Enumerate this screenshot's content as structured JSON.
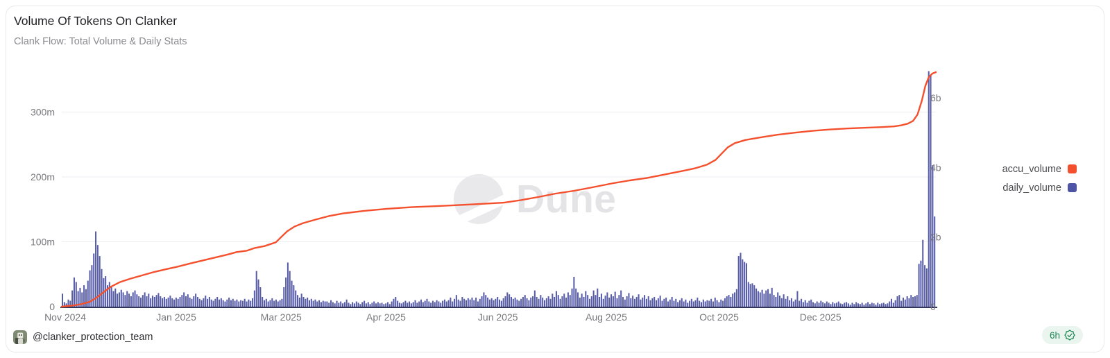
{
  "card": {
    "title": "Volume Of Tokens On Clanker",
    "subtitle": "Clank Flow: Total Volume & Daily Stats"
  },
  "watermark": {
    "text": "Dune"
  },
  "legend": [
    {
      "label": "accu_volume",
      "color": "#F4502D"
    },
    {
      "label": "daily_volume",
      "color": "#4F55A6"
    }
  ],
  "footer": {
    "handle": "@clanker_protection_team",
    "badge": {
      "label": "6h",
      "color": "#1B8651",
      "bg": "#E9F5EE"
    }
  },
  "chart_data": {
    "type": "combo",
    "title": "Volume Of Tokens On Clanker",
    "subtitle": "Clank Flow: Total Volume & Daily Stats",
    "grid": "horizontal-left-axis-only",
    "legend_position": "right",
    "left_axis": {
      "unit": "millions",
      "values": [
        0,
        100,
        200,
        300
      ],
      "labels": [
        "0",
        "100m",
        "200m",
        "300m"
      ],
      "series": "daily_volume"
    },
    "right_axis": {
      "unit": "billions",
      "values": [
        0,
        2,
        4,
        6
      ],
      "labels": [
        "0",
        "2b",
        "4b",
        "6b"
      ],
      "series": "accu_volume"
    },
    "x_axis": {
      "range": "Nov 2024 - Jan 2026 (daily)",
      "ticks": [
        {
          "label": "Nov 2024",
          "f": 0.004
        },
        {
          "label": "Jan 2025",
          "f": 0.131
        },
        {
          "label": "Mar 2025",
          "f": 0.251
        },
        {
          "label": "Apr 2025",
          "f": 0.371
        },
        {
          "label": "Jun 2025",
          "f": 0.499
        },
        {
          "label": "Aug 2025",
          "f": 0.623
        },
        {
          "label": "Oct 2025",
          "f": 0.752
        },
        {
          "label": "Dec 2025",
          "f": 0.868
        }
      ]
    },
    "series": [
      {
        "name": "accu_volume",
        "type": "line",
        "axis": "right",
        "color": "#F4502D",
        "points": [
          [
            0.0,
            0.0
          ],
          [
            0.012,
            0.03
          ],
          [
            0.022,
            0.07
          ],
          [
            0.032,
            0.14
          ],
          [
            0.04,
            0.26
          ],
          [
            0.048,
            0.42
          ],
          [
            0.056,
            0.57
          ],
          [
            0.066,
            0.7
          ],
          [
            0.078,
            0.8
          ],
          [
            0.092,
            0.9
          ],
          [
            0.106,
            1.0
          ],
          [
            0.12,
            1.08
          ],
          [
            0.131,
            1.14
          ],
          [
            0.15,
            1.26
          ],
          [
            0.17,
            1.38
          ],
          [
            0.19,
            1.5
          ],
          [
            0.2,
            1.57
          ],
          [
            0.212,
            1.61
          ],
          [
            0.22,
            1.68
          ],
          [
            0.232,
            1.74
          ],
          [
            0.245,
            1.85
          ],
          [
            0.251,
            2.0
          ],
          [
            0.258,
            2.17
          ],
          [
            0.266,
            2.3
          ],
          [
            0.276,
            2.4
          ],
          [
            0.29,
            2.5
          ],
          [
            0.305,
            2.6
          ],
          [
            0.322,
            2.68
          ],
          [
            0.345,
            2.75
          ],
          [
            0.371,
            2.81
          ],
          [
            0.4,
            2.86
          ],
          [
            0.438,
            2.9
          ],
          [
            0.47,
            2.94
          ],
          [
            0.506,
            2.99
          ],
          [
            0.525,
            3.06
          ],
          [
            0.545,
            3.15
          ],
          [
            0.565,
            3.25
          ],
          [
            0.586,
            3.33
          ],
          [
            0.605,
            3.42
          ],
          [
            0.631,
            3.55
          ],
          [
            0.65,
            3.63
          ],
          [
            0.67,
            3.7
          ],
          [
            0.69,
            3.8
          ],
          [
            0.71,
            3.9
          ],
          [
            0.725,
            3.98
          ],
          [
            0.738,
            4.08
          ],
          [
            0.748,
            4.22
          ],
          [
            0.755,
            4.4
          ],
          [
            0.762,
            4.58
          ],
          [
            0.77,
            4.7
          ],
          [
            0.782,
            4.79
          ],
          [
            0.798,
            4.86
          ],
          [
            0.818,
            4.94
          ],
          [
            0.838,
            5.0
          ],
          [
            0.858,
            5.05
          ],
          [
            0.878,
            5.09
          ],
          [
            0.898,
            5.12
          ],
          [
            0.918,
            5.14
          ],
          [
            0.938,
            5.16
          ],
          [
            0.952,
            5.18
          ],
          [
            0.96,
            5.21
          ],
          [
            0.968,
            5.26
          ],
          [
            0.974,
            5.34
          ],
          [
            0.979,
            5.52
          ],
          [
            0.984,
            5.92
          ],
          [
            0.988,
            6.35
          ],
          [
            0.992,
            6.6
          ],
          [
            0.996,
            6.7
          ],
          [
            1.0,
            6.74
          ]
        ]
      },
      {
        "name": "daily_volume",
        "type": "bar",
        "axis": "left",
        "color": "#575CA7",
        "values": [
          20,
          7,
          5,
          11,
          9,
          25,
          45,
          38,
          24,
          29,
          22,
          33,
          27,
          40,
          56,
          64,
          82,
          116,
          95,
          78,
          58,
          44,
          47,
          33,
          38,
          30,
          24,
          28,
          20,
          22,
          26,
          22,
          18,
          24,
          20,
          16,
          22,
          25,
          19,
          16,
          14,
          18,
          22,
          16,
          20,
          13,
          17,
          15,
          18,
          21,
          16,
          13,
          15,
          12,
          14,
          17,
          13,
          11,
          14,
          12,
          15,
          18,
          22,
          16,
          19,
          14,
          12,
          16,
          20,
          15,
          12,
          10,
          13,
          17,
          12,
          15,
          11,
          9,
          12,
          15,
          11,
          13,
          10,
          8,
          11,
          14,
          10,
          12,
          9,
          11,
          8,
          10,
          9,
          12,
          8,
          11,
          9,
          13,
          25,
          55,
          42,
          30,
          15,
          10,
          12,
          8,
          10,
          13,
          9,
          11,
          8,
          10,
          12,
          30,
          45,
          68,
          55,
          40,
          33,
          25,
          18,
          14,
          20,
          15,
          12,
          14,
          10,
          12,
          9,
          11,
          8,
          10,
          7,
          9,
          8,
          8,
          6,
          10,
          7,
          5,
          9,
          6,
          8,
          5,
          7,
          11,
          6,
          4,
          7,
          5,
          8,
          6,
          4,
          7,
          9,
          5,
          7,
          4,
          6,
          8,
          5,
          7,
          5,
          6,
          4,
          5,
          7,
          4,
          8,
          12,
          15,
          9,
          6,
          5,
          7,
          9,
          6,
          8,
          5,
          7,
          10,
          6,
          8,
          11,
          7,
          9,
          12,
          8,
          6,
          9,
          7,
          10,
          8,
          6,
          9,
          11,
          8,
          10,
          14,
          8,
          12,
          18,
          11,
          9,
          15,
          12,
          10,
          13,
          11,
          14,
          10,
          14,
          8,
          12,
          16,
          22,
          18,
          14,
          11,
          13,
          10,
          12,
          15,
          11,
          9,
          13,
          16,
          22,
          19,
          15,
          12,
          14,
          11,
          9,
          12,
          15,
          18,
          13,
          10,
          14,
          16,
          25,
          15,
          12,
          18,
          14,
          10,
          13,
          16,
          12,
          20,
          15,
          24,
          18,
          12,
          16,
          20,
          14,
          22,
          18,
          28,
          46,
          28,
          22,
          14,
          20,
          15,
          24,
          18,
          12,
          16,
          25,
          18,
          28,
          15,
          20,
          12,
          17,
          22,
          14,
          19,
          16,
          23,
          13,
          18,
          25,
          15,
          11,
          16,
          21,
          13,
          17,
          12,
          15,
          19,
          11,
          14,
          18,
          12,
          16,
          10,
          13,
          15,
          10,
          13,
          17,
          9,
          12,
          14,
          8,
          11,
          15,
          9,
          12,
          7,
          10,
          13,
          8,
          11,
          6,
          9,
          12,
          8,
          10,
          14,
          9,
          7,
          11,
          8,
          10,
          9,
          12,
          8,
          14,
          10,
          7,
          11,
          9,
          13,
          16,
          18,
          15,
          20,
          22,
          27,
          78,
          83,
          73,
          69,
          67,
          38,
          35,
          36,
          33,
          28,
          24,
          22,
          26,
          20,
          25,
          27,
          20,
          29,
          18,
          15,
          22,
          17,
          13,
          19,
          12,
          16,
          10,
          13,
          8,
          11,
          24,
          9,
          12,
          7,
          10,
          6,
          9,
          11,
          7,
          5,
          8,
          6,
          9,
          7,
          5,
          8,
          6,
          4,
          7,
          5,
          6,
          8,
          5,
          4,
          6,
          7,
          5,
          3,
          6,
          4,
          7,
          5,
          4,
          6,
          3,
          5,
          7,
          4,
          6,
          5,
          3,
          6,
          4,
          5,
          6,
          4,
          5,
          8,
          12,
          6,
          10,
          16,
          18,
          9,
          14,
          11,
          16,
          13,
          18,
          15,
          16,
          18,
          66,
          71,
          103,
          64,
          59,
          363,
          357,
          218,
          139
        ]
      }
    ]
  }
}
